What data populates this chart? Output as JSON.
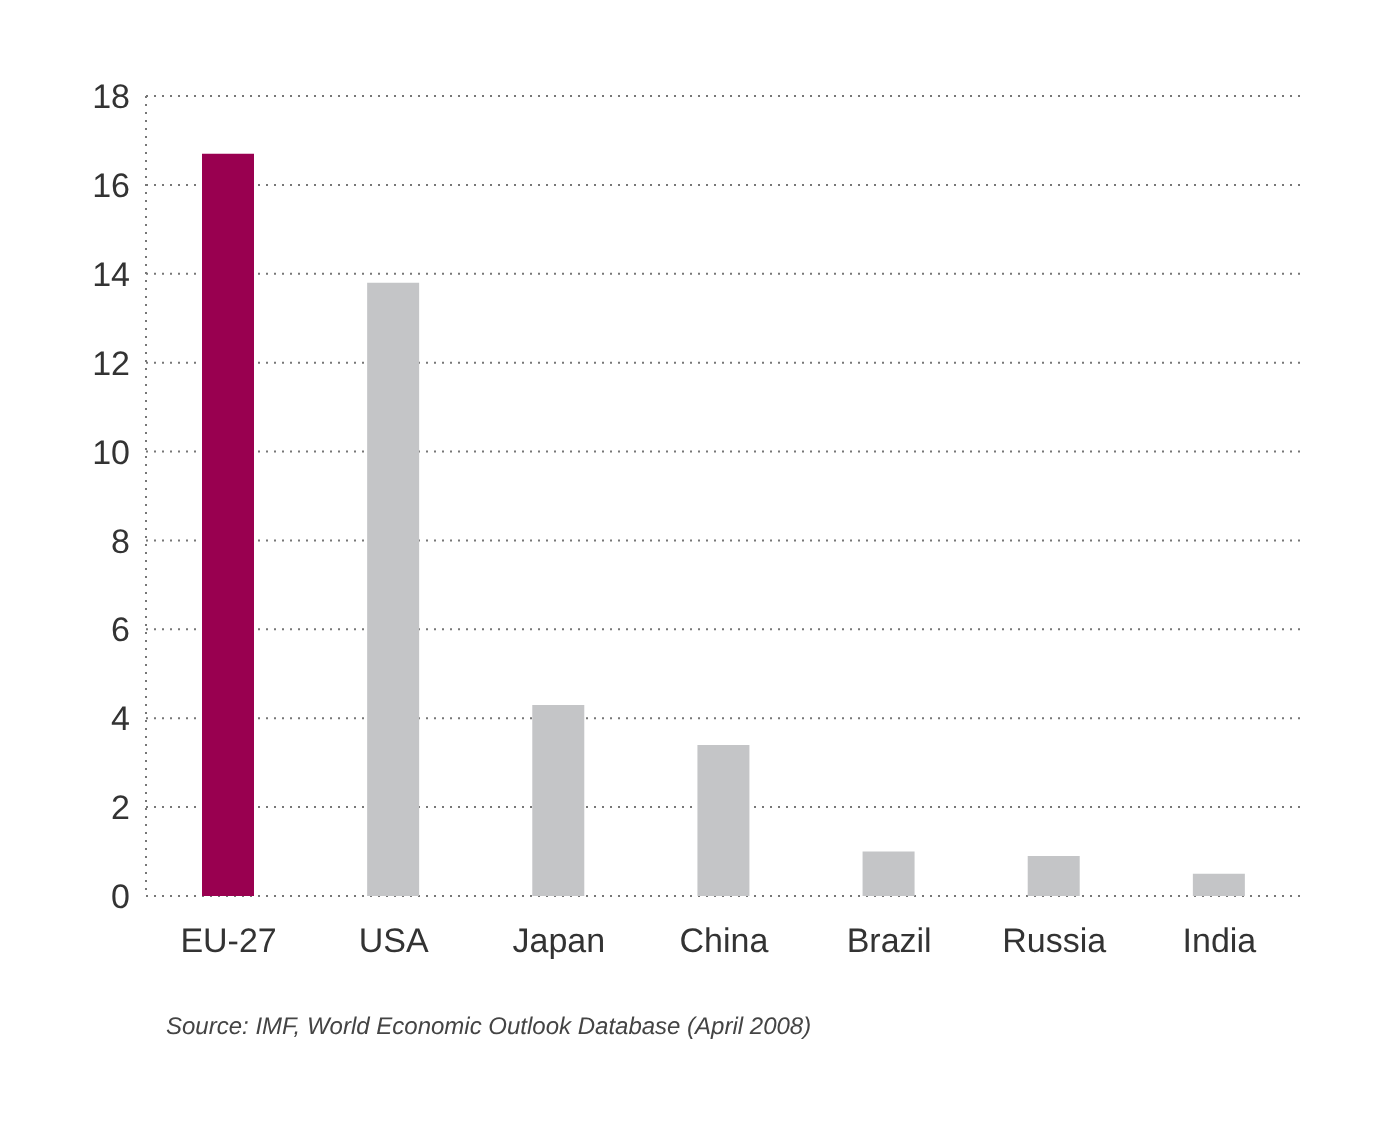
{
  "chart_data": {
    "type": "bar",
    "categories": [
      "EU-27",
      "USA",
      "Japan",
      "China",
      "Brazil",
      "Russia",
      "India"
    ],
    "values": [
      16.7,
      13.8,
      4.3,
      3.4,
      1.0,
      0.9,
      0.5
    ],
    "colors": [
      "#990050",
      "#c4c5c7",
      "#c4c5c7",
      "#c4c5c7",
      "#c4c5c7",
      "#c4c5c7",
      "#c4c5c7"
    ],
    "ylim": [
      0,
      18
    ],
    "yticks": [
      0,
      2,
      4,
      6,
      8,
      10,
      12,
      14,
      16,
      18
    ],
    "grid": "y",
    "annotations": [
      "Source: IMF, World Economic Outlook Database (April 2008)"
    ]
  }
}
